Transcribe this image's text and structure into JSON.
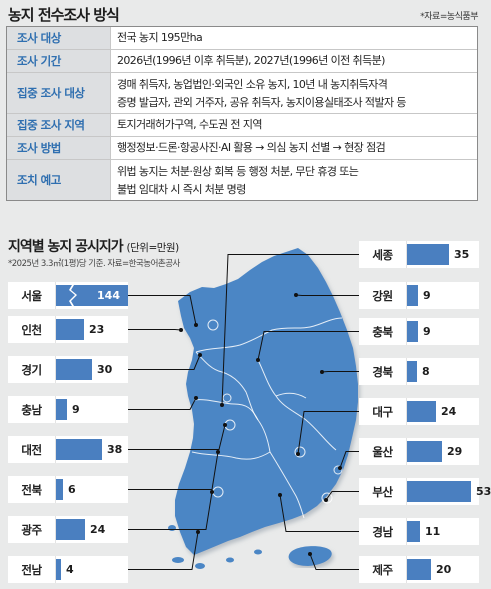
{
  "header": {
    "title": "농지 전수조사 방식",
    "source": "*자료=농식품부"
  },
  "info_rows": [
    {
      "label": "조사 대상",
      "lines": [
        "전국 농지 195만ha"
      ]
    },
    {
      "label": "조사 기간",
      "lines": [
        "2026년(1996년 이후 취득분), 2027년(1996년 이전 취득분)"
      ]
    },
    {
      "label": "집중 조사 대상",
      "lines": [
        "경매 취득자, 농업법인·외국인 소유 농지, 10년 내 농지취득자격",
        "증명 발급자, 관외 거주자, 공유 취득자, 농지이용실태조사 적발자 등"
      ]
    },
    {
      "label": "집중 조사 지역",
      "lines": [
        "토지거래허가구역, 수도권 전 지역"
      ]
    },
    {
      "label": "조사 방법",
      "lines": [
        "행정정보·드론·항공사진·AI 활용 → 의심 농지 선별 → 현장 점검"
      ]
    },
    {
      "label": "조치 예고",
      "lines": [
        "위법 농지는 처분·원상 회복 등 행정 처분, 무단 휴경 또는",
        "불법 임대차 시 즉시 처분 명령"
      ]
    }
  ],
  "map_section": {
    "title": "지역별 농지 공시지가",
    "unit": "(단위=만원)",
    "note": "*2025년 3.3㎡(1평)당 기준. 자료=한국농어촌공사"
  },
  "chart_data": {
    "type": "bar",
    "title": "지역별 농지 공시지가",
    "unit": "단위=만원",
    "categories": [
      "서울",
      "인천",
      "경기",
      "충남",
      "대전",
      "전북",
      "광주",
      "전남",
      "세종",
      "강원",
      "충북",
      "경북",
      "대구",
      "울산",
      "부산",
      "경남",
      "제주"
    ],
    "values": [
      144,
      23,
      30,
      9,
      38,
      6,
      24,
      4,
      35,
      9,
      9,
      8,
      24,
      29,
      53,
      11,
      20
    ],
    "broken_axis": [
      "서울"
    ]
  },
  "colors": {
    "bar": "#4a7fc0",
    "map": "#4b86c5",
    "label_text": "#2f6fb0",
    "header_fill": "#dddfe1"
  }
}
